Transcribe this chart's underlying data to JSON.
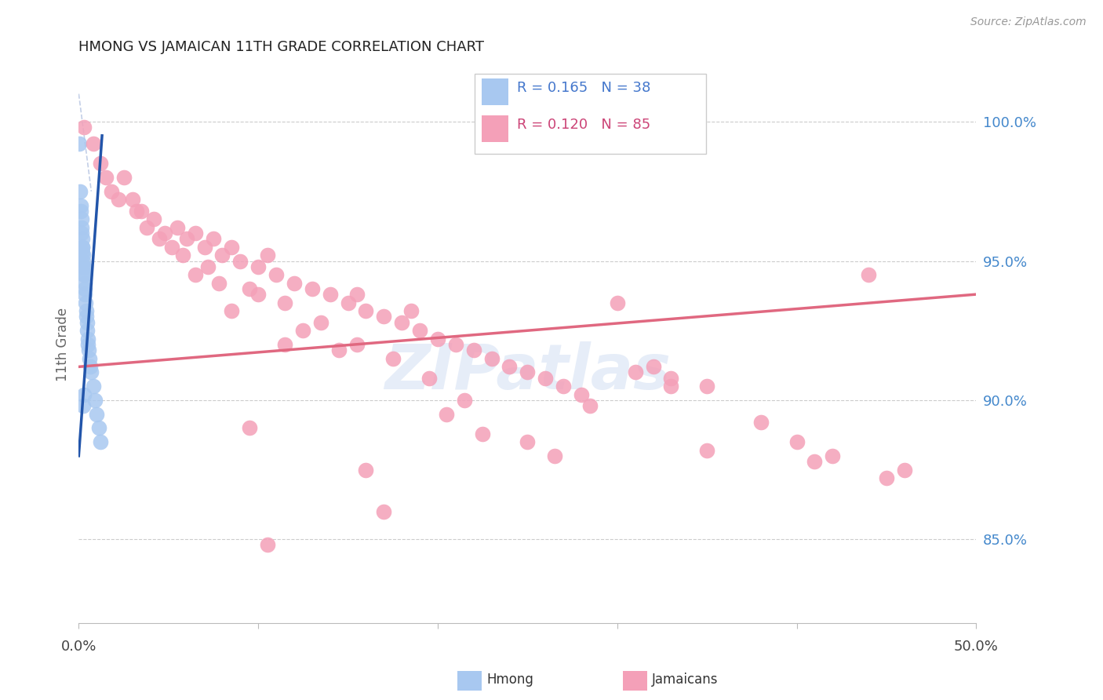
{
  "title": "HMONG VS JAMAICAN 11TH GRADE CORRELATION CHART",
  "source": "Source: ZipAtlas.com",
  "ylabel": "11th Grade",
  "xlim": [
    0.0,
    50.0
  ],
  "ylim": [
    82.0,
    102.0
  ],
  "ytick_positions": [
    85.0,
    90.0,
    95.0,
    100.0
  ],
  "ytick_labels": [
    "85.0%",
    "90.0%",
    "95.0%",
    "100.0%"
  ],
  "color_hmong": "#a8c8f0",
  "color_jamaican": "#f4a0b8",
  "color_hmong_line": "#2255aa",
  "color_hmong_ci": "#aabbdd",
  "color_jamaican_line": "#e06880",
  "legend_r_hmong": "R = 0.165",
  "legend_n_hmong": "N = 38",
  "legend_r_jamaican": "R = 0.120",
  "legend_n_jamaican": "N = 85",
  "watermark": "ZIPatlas",
  "hmong_x": [
    0.05,
    0.08,
    0.1,
    0.12,
    0.15,
    0.15,
    0.18,
    0.2,
    0.2,
    0.22,
    0.22,
    0.25,
    0.25,
    0.28,
    0.3,
    0.3,
    0.32,
    0.32,
    0.35,
    0.35,
    0.38,
    0.4,
    0.42,
    0.45,
    0.48,
    0.5,
    0.52,
    0.55,
    0.6,
    0.65,
    0.7,
    0.8,
    0.9,
    1.0,
    1.1,
    1.2,
    0.25,
    0.3
  ],
  "hmong_y": [
    99.2,
    97.5,
    97.0,
    96.8,
    96.5,
    96.2,
    96.0,
    95.8,
    95.5,
    95.3,
    95.5,
    95.0,
    95.2,
    94.8,
    94.5,
    94.8,
    94.2,
    94.5,
    94.0,
    93.8,
    93.5,
    93.2,
    93.0,
    92.8,
    92.5,
    92.2,
    92.0,
    91.8,
    91.5,
    91.2,
    91.0,
    90.5,
    90.0,
    89.5,
    89.0,
    88.5,
    89.8,
    90.2
  ],
  "jamaican_x": [
    0.3,
    0.8,
    1.2,
    1.8,
    2.5,
    3.0,
    3.5,
    4.2,
    4.8,
    5.5,
    6.0,
    6.5,
    7.0,
    7.5,
    8.0,
    8.5,
    9.0,
    10.0,
    10.5,
    11.0,
    12.0,
    13.0,
    14.0,
    15.0,
    15.5,
    16.0,
    17.0,
    18.0,
    18.5,
    19.0,
    20.0,
    21.0,
    22.0,
    23.0,
    24.0,
    25.0,
    26.0,
    27.0,
    28.0,
    30.0,
    32.0,
    33.0,
    35.0,
    38.0,
    40.0,
    42.0,
    44.0,
    46.0,
    1.5,
    2.2,
    3.8,
    5.2,
    7.2,
    9.5,
    11.5,
    13.5,
    15.5,
    17.5,
    19.5,
    3.2,
    5.8,
    7.8,
    10.0,
    12.5,
    14.5,
    4.5,
    6.5,
    8.5,
    20.5,
    22.5,
    25.0,
    28.5,
    31.0,
    35.0,
    41.0,
    45.0,
    11.5,
    21.5,
    33.0,
    16.0,
    9.5,
    17.0,
    26.5,
    10.5
  ],
  "jamaican_y": [
    99.8,
    99.2,
    98.5,
    97.5,
    98.0,
    97.2,
    96.8,
    96.5,
    96.0,
    96.2,
    95.8,
    96.0,
    95.5,
    95.8,
    95.2,
    95.5,
    95.0,
    94.8,
    95.2,
    94.5,
    94.2,
    94.0,
    93.8,
    93.5,
    93.8,
    93.2,
    93.0,
    92.8,
    93.2,
    92.5,
    92.2,
    92.0,
    91.8,
    91.5,
    91.2,
    91.0,
    90.8,
    90.5,
    90.2,
    93.5,
    91.2,
    90.8,
    90.5,
    89.2,
    88.5,
    88.0,
    94.5,
    87.5,
    98.0,
    97.2,
    96.2,
    95.5,
    94.8,
    94.0,
    93.5,
    92.8,
    92.0,
    91.5,
    90.8,
    96.8,
    95.2,
    94.2,
    93.8,
    92.5,
    91.8,
    95.8,
    94.5,
    93.2,
    89.5,
    88.8,
    88.5,
    89.8,
    91.0,
    88.2,
    87.8,
    87.2,
    92.0,
    90.0,
    90.5,
    87.5,
    89.0,
    86.0,
    88.0,
    84.8
  ],
  "jamaican_line_x0": 0.0,
  "jamaican_line_y0": 91.2,
  "jamaican_line_x1": 50.0,
  "jamaican_line_y1": 93.8,
  "hmong_line_x0": 0.0,
  "hmong_line_y0": 88.0,
  "hmong_line_x1": 1.3,
  "hmong_line_y1": 99.5
}
